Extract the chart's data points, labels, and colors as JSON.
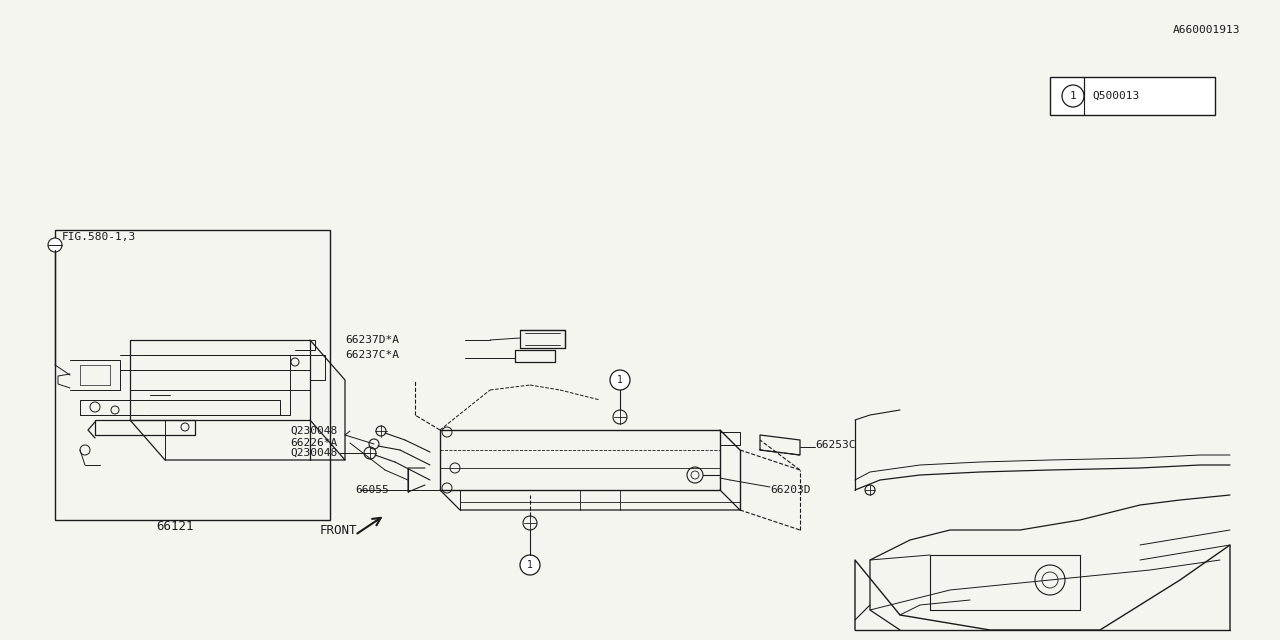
{
  "bg_color": "#f5f5f0",
  "line_color": "#1a1a1a",
  "fig_ref": "A660001913",
  "legend_ref": "Q500013",
  "front_label": "FRONT",
  "fig_bottom_label": "FIG.580-1,3",
  "lw": 0.9
}
